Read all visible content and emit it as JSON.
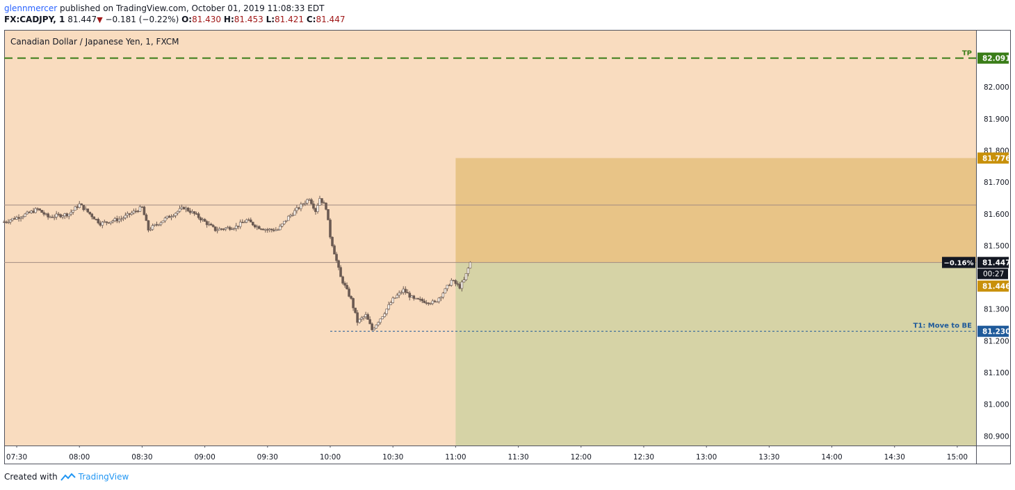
{
  "header": {
    "user": "glennmercer",
    "published": "published on TradingView.com, October 01, 2019 11:08:33 EDT",
    "symbol": "FX:CADJPY, 1",
    "last": "81.447",
    "change": "−0.181 (−0.22%)",
    "o_label": "O:",
    "o_value": "81.430",
    "h_label": "H:",
    "h_value": "81.453",
    "l_label": "L:",
    "l_value": "81.421",
    "c_label": "C:",
    "c_value": "81.447"
  },
  "colors": {
    "background": "#f9dcbf",
    "profit_zone": "#d6d3a6",
    "loss_zone": "#e8c487",
    "tp_line": "#3a7d18",
    "gold_label": "#c8900a",
    "be_line": "#1f5a9a",
    "candle": "#6b5a52",
    "text": "#131722"
  },
  "footer": {
    "created_with": "Created with",
    "brand": "TradingView"
  },
  "chart_data": {
    "type": "candlestick",
    "title": "Canadian Dollar / Japanese Yen, 1, FXCM",
    "x_ticks": [
      "07:30",
      "08:00",
      "08:30",
      "09:00",
      "09:30",
      "10:00",
      "10:30",
      "11:00",
      "11:30",
      "12:00",
      "12:30",
      "13:00",
      "13:30",
      "14:00",
      "14:30",
      "15:00"
    ],
    "y_ticks": [
      "82.000",
      "81.900",
      "81.800",
      "81.700",
      "81.600",
      "81.500",
      "81.300",
      "81.200",
      "81.100",
      "81.000",
      "80.900"
    ],
    "ylim": [
      80.87,
      82.18
    ],
    "xlim": [
      "07:24",
      "15:09"
    ],
    "price_path": [
      [
        "07:24",
        81.575
      ],
      [
        "07:35",
        81.6
      ],
      [
        "07:40",
        81.615
      ],
      [
        "07:45",
        81.59
      ],
      [
        "07:55",
        81.6
      ],
      [
        "08:00",
        81.63
      ],
      [
        "08:05",
        81.6
      ],
      [
        "08:10",
        81.57
      ],
      [
        "08:20",
        81.585
      ],
      [
        "08:30",
        81.62
      ],
      [
        "08:33",
        81.55
      ],
      [
        "08:40",
        81.58
      ],
      [
        "08:50",
        81.62
      ],
      [
        "08:55",
        81.6
      ],
      [
        "09:00",
        81.575
      ],
      [
        "09:05",
        81.55
      ],
      [
        "09:15",
        81.56
      ],
      [
        "09:20",
        81.58
      ],
      [
        "09:25",
        81.56
      ],
      [
        "09:30",
        81.55
      ],
      [
        "09:35",
        81.55
      ],
      [
        "09:40",
        81.59
      ],
      [
        "09:45",
        81.62
      ],
      [
        "09:50",
        81.65
      ],
      [
        "09:53",
        81.61
      ],
      [
        "09:55",
        81.65
      ],
      [
        "09:58",
        81.62
      ],
      [
        "10:00",
        81.53
      ],
      [
        "10:05",
        81.4
      ],
      [
        "10:10",
        81.33
      ],
      [
        "10:13",
        81.26
      ],
      [
        "10:17",
        81.28
      ],
      [
        "10:20",
        81.235
      ],
      [
        "10:25",
        81.28
      ],
      [
        "10:30",
        81.33
      ],
      [
        "10:35",
        81.36
      ],
      [
        "10:40",
        81.33
      ],
      [
        "10:50",
        81.32
      ],
      [
        "10:55",
        81.36
      ],
      [
        "10:58",
        81.39
      ],
      [
        "11:02",
        81.37
      ],
      [
        "11:04",
        81.39
      ],
      [
        "11:07",
        81.447
      ]
    ],
    "series_color": "#6b5a52",
    "horizontal_lines": [
      {
        "name": "upper-reference",
        "y": 81.628,
        "color": "#a08a80"
      },
      {
        "name": "current-reference",
        "y": 81.447,
        "color": "#a08a80"
      }
    ],
    "position": {
      "start": "11:00",
      "end": "15:09",
      "entry": 81.446,
      "stop": 81.776,
      "target": 80.87
    },
    "annotations": {
      "tp": {
        "label": "TP",
        "price": 82.091,
        "price_label": "82.091"
      },
      "stop": {
        "price": 81.776,
        "price_label": "81.776"
      },
      "entry": {
        "price": 81.446,
        "price_label": "81.446"
      },
      "be": {
        "label": "T1:  Move to BE",
        "price": 81.23,
        "price_label": "81.230",
        "start": "10:00"
      },
      "current": {
        "price": 81.447,
        "price_label": "81.447",
        "pct_label": "−0.16%",
        "countdown": "00:27"
      }
    }
  }
}
